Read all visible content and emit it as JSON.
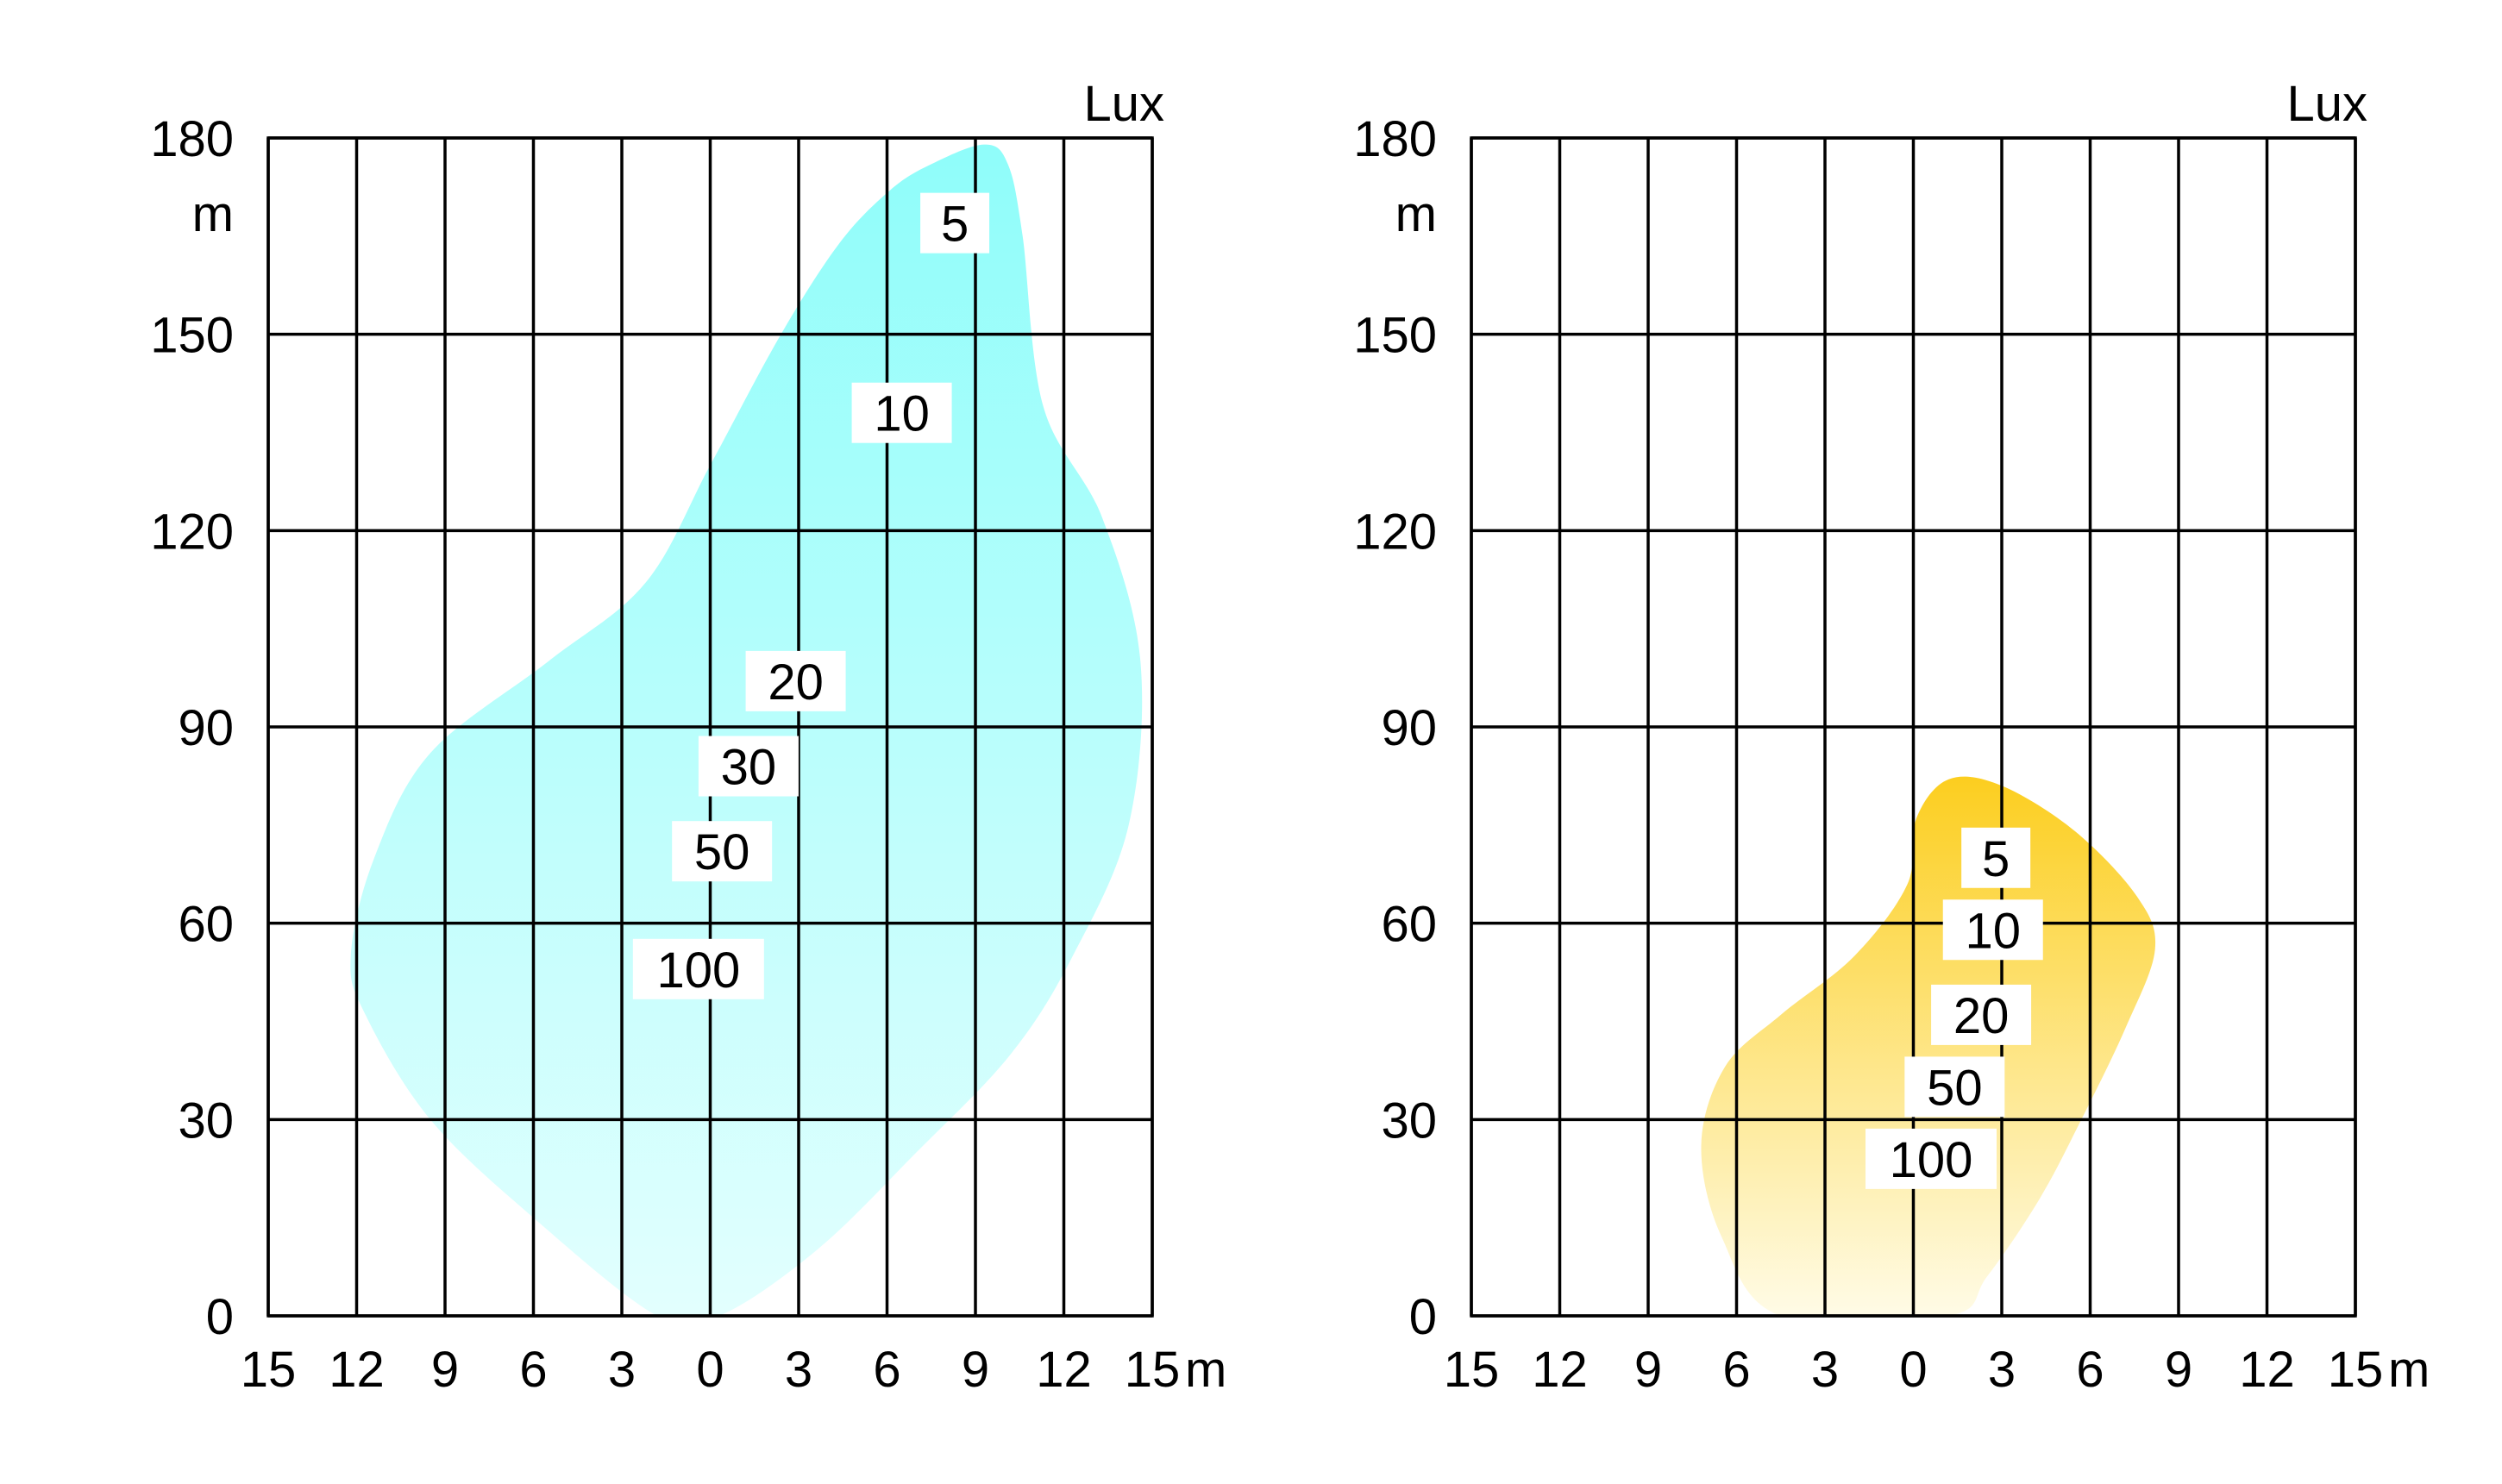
{
  "chart_data": [
    {
      "type": "area",
      "title": "",
      "xlabel": "m",
      "ylabel": "m",
      "unit_label": "Lux",
      "x_tick_labels": [
        "15",
        "12",
        "9",
        "6",
        "3",
        "0",
        "3",
        "6",
        "9",
        "12",
        "15"
      ],
      "y_tick_labels": [
        "0",
        "30",
        "60",
        "90",
        "120",
        "150",
        "180"
      ],
      "xlim": [
        -15,
        15
      ],
      "ylim": [
        0,
        180
      ],
      "grid": true,
      "fill_colors": {
        "top": "#8ffdfa",
        "bottom": "#e3fffe"
      },
      "isolux_labels": [
        {
          "text": "5",
          "x": 8.3,
          "y": 167
        },
        {
          "text": "10",
          "x": 6.5,
          "y": 138
        },
        {
          "text": "20",
          "x": 2.9,
          "y": 97
        },
        {
          "text": "30",
          "x": 1.3,
          "y": 84
        },
        {
          "text": "50",
          "x": 0.4,
          "y": 71
        },
        {
          "text": "100",
          "x": -0.4,
          "y": 53
        }
      ],
      "outline": [
        [
          -1.8,
          0
        ],
        [
          -6,
          15
        ],
        [
          -9.5,
          30
        ],
        [
          -11.7,
          46
        ],
        [
          -12.2,
          55
        ],
        [
          -11.4,
          70
        ],
        [
          -9.5,
          86
        ],
        [
          -5.5,
          100
        ],
        [
          -2.2,
          112
        ],
        [
          0,
          130
        ],
        [
          2.4,
          150
        ],
        [
          4.4,
          164
        ],
        [
          6.1,
          172
        ],
        [
          7.5,
          176
        ],
        [
          9.3,
          179
        ],
        [
          10.1,
          176
        ],
        [
          10.6,
          165
        ],
        [
          11.3,
          139
        ],
        [
          13.3,
          122
        ],
        [
          14.6,
          100
        ],
        [
          14.2,
          75
        ],
        [
          12.3,
          55
        ],
        [
          10.2,
          40
        ],
        [
          7,
          25
        ],
        [
          3.6,
          10
        ],
        [
          0.3,
          0
        ]
      ]
    },
    {
      "type": "area",
      "title": "",
      "xlabel": "m",
      "ylabel": "m",
      "unit_label": "Lux",
      "x_tick_labels": [
        "15",
        "12",
        "9",
        "6",
        "3",
        "0",
        "3",
        "6",
        "9",
        "12",
        "15"
      ],
      "y_tick_labels": [
        "0",
        "30",
        "60",
        "90",
        "120",
        "150",
        "180"
      ],
      "xlim": [
        -15,
        15
      ],
      "ylim": [
        0,
        180
      ],
      "grid": true,
      "fill_colors": {
        "top": "#fcce1f",
        "bottom": "#fffce9"
      },
      "isolux_labels": [
        {
          "text": "5",
          "x": 2.8,
          "y": 70
        },
        {
          "text": "10",
          "x": 2.7,
          "y": 59
        },
        {
          "text": "20",
          "x": 2.3,
          "y": 46
        },
        {
          "text": "50",
          "x": 1.4,
          "y": 35
        },
        {
          "text": "100",
          "x": 0.6,
          "y": 24
        }
      ],
      "outline": [
        [
          -4.5,
          0
        ],
        [
          -6.5,
          12
        ],
        [
          -7.2,
          26
        ],
        [
          -6.4,
          38
        ],
        [
          -4.5,
          46
        ],
        [
          -2,
          55
        ],
        [
          -0.2,
          66
        ],
        [
          0.1,
          76
        ],
        [
          1.2,
          82
        ],
        [
          3,
          81
        ],
        [
          5.5,
          74
        ],
        [
          7.6,
          64
        ],
        [
          8.2,
          56
        ],
        [
          7.2,
          44
        ],
        [
          5.7,
          30
        ],
        [
          4.3,
          18
        ],
        [
          2.5,
          6
        ],
        [
          1.2,
          0
        ]
      ]
    }
  ]
}
